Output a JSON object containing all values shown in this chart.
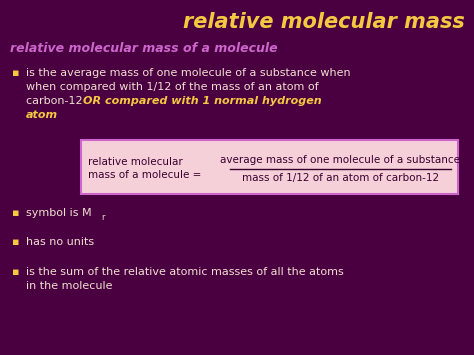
{
  "bg_color": "#4a0040",
  "title": "relative molecular mass",
  "title_color": "#f5c842",
  "subtitle": "relative molecular mass of a molecule",
  "subtitle_color": "#cc66cc",
  "bullet_color": "#f5c842",
  "text_color": "#f0e0d0",
  "bold_text_color": "#f5c842",
  "box_bg": "#f5d0d8",
  "box_border": "#cc66cc",
  "box_left_label_line1": "relative molecular",
  "box_left_label_line2": "mass of a molecule =",
  "box_numerator": "average mass of one molecule of a substance",
  "box_denominator": "mass of 1/12 of an atom of carbon-12",
  "box_text_color": "#3a0030",
  "line1": "is the average mass of one molecule of a substance when",
  "line2": "when compared with 1/12 of the mass of an atom of",
  "line3_normal": "carbon-12 ",
  "line3_bold": "OR compared with 1 normal hydrogen",
  "line4_bold": "atom",
  "bullet2_normal": "symbol is M",
  "bullet2_sub": "r",
  "bullet3": "has no units",
  "bullet4_line1": "is the sum of the relative atomic masses of all the atoms",
  "bullet4_line2": "in the molecule"
}
